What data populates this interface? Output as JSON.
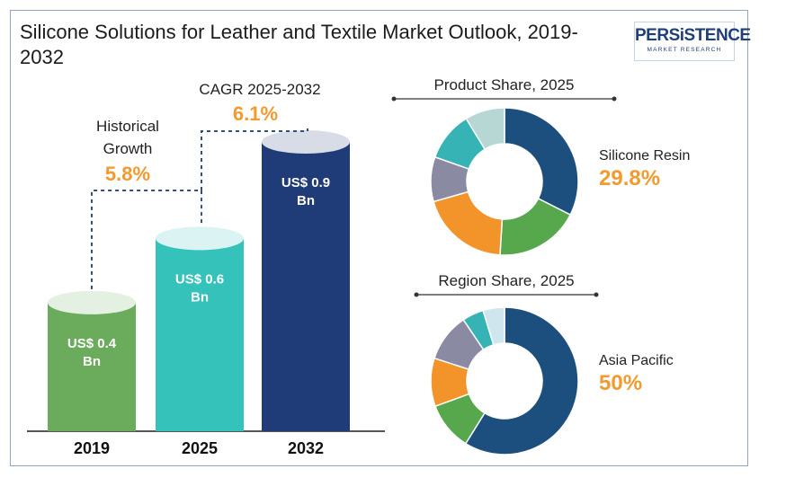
{
  "title": "Silicone Solutions for Leather and Textile Market Outlook, 2019-2032",
  "logo": {
    "brand": "PERSiSTENCE",
    "sub": "MARKET RESEARCH"
  },
  "colors": {
    "bar_2019": "#6aab5c",
    "bar_2025": "#35c2bb",
    "bar_2032": "#1f3c78",
    "accent": "#f29a2e",
    "dark_blue": "#1d4f7e",
    "green": "#57a84d",
    "orange": "#f2942a",
    "purple": "#8b8aa3",
    "teal": "#35b3b5",
    "light_teal": "#b6d7d4",
    "light_blue": "#cfe6ef"
  },
  "chart_data": [
    {
      "type": "bar",
      "categories": [
        "2019",
        "2025",
        "2032"
      ],
      "values": [
        0.4,
        0.6,
        0.9
      ],
      "value_labels": [
        "US$ 0.4 Bn",
        "US$ 0.6 Bn",
        "US$ 0.9 Bn"
      ],
      "annotations": {
        "historical": {
          "label": "Historical Growth",
          "value": "5.8%"
        },
        "cagr": {
          "label": "CAGR 2025-2032",
          "value": "6.1%"
        }
      }
    },
    {
      "type": "pie",
      "title": "Product Share, 2025",
      "highlight": {
        "label": "Silicone Resin",
        "value": "29.8%"
      },
      "slices": [
        {
          "value": 29.8,
          "color": "#1d4f7e"
        },
        {
          "value": 17,
          "color": "#57a84d"
        },
        {
          "value": 18,
          "color": "#f2942a"
        },
        {
          "value": 9,
          "color": "#8b8aa3"
        },
        {
          "value": 10,
          "color": "#35b3b5"
        },
        {
          "value": 8,
          "color": "#b6d7d4"
        }
      ]
    },
    {
      "type": "pie",
      "title": "Region Share, 2025",
      "highlight": {
        "label": "Asia Pacific",
        "value": "50%"
      },
      "slices": [
        {
          "value": 50,
          "color": "#1d4f7e"
        },
        {
          "value": 9,
          "color": "#57a84d"
        },
        {
          "value": 9,
          "color": "#f2942a"
        },
        {
          "value": 9,
          "color": "#8b8aa3"
        },
        {
          "value": 4,
          "color": "#35b3b5"
        },
        {
          "value": 4,
          "color": "#cfe6ef"
        }
      ]
    }
  ]
}
